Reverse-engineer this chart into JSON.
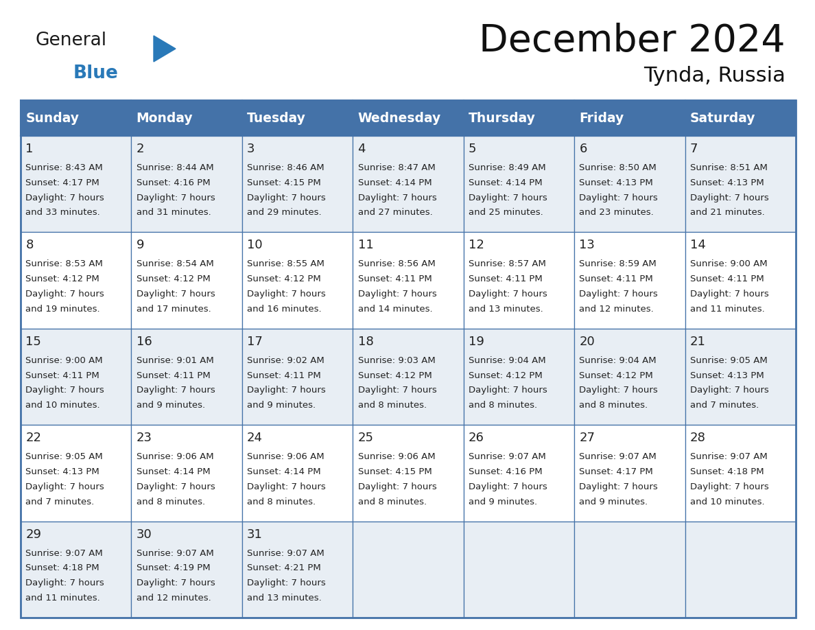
{
  "title": "December 2024",
  "subtitle": "Tynda, Russia",
  "days_of_week": [
    "Sunday",
    "Monday",
    "Tuesday",
    "Wednesday",
    "Thursday",
    "Friday",
    "Saturday"
  ],
  "header_bg": "#4472a8",
  "header_text": "#ffffff",
  "row_bg_light": "#e8eef4",
  "row_bg_white": "#ffffff",
  "border_color": "#4472a8",
  "day_num_color": "#222222",
  "text_color": "#222222",
  "title_color": "#111111",
  "subtitle_color": "#111111",
  "logo_general_color": "#1a1a1a",
  "logo_blue_color": "#2979b8",
  "calendar_data": [
    [
      {
        "day": "1",
        "sunrise": "8:43 AM",
        "sunset": "4:17 PM",
        "daylight_l1": "Daylight: 7 hours",
        "daylight_l2": "and 33 minutes."
      },
      {
        "day": "2",
        "sunrise": "8:44 AM",
        "sunset": "4:16 PM",
        "daylight_l1": "Daylight: 7 hours",
        "daylight_l2": "and 31 minutes."
      },
      {
        "day": "3",
        "sunrise": "8:46 AM",
        "sunset": "4:15 PM",
        "daylight_l1": "Daylight: 7 hours",
        "daylight_l2": "and 29 minutes."
      },
      {
        "day": "4",
        "sunrise": "8:47 AM",
        "sunset": "4:14 PM",
        "daylight_l1": "Daylight: 7 hours",
        "daylight_l2": "and 27 minutes."
      },
      {
        "day": "5",
        "sunrise": "8:49 AM",
        "sunset": "4:14 PM",
        "daylight_l1": "Daylight: 7 hours",
        "daylight_l2": "and 25 minutes."
      },
      {
        "day": "6",
        "sunrise": "8:50 AM",
        "sunset": "4:13 PM",
        "daylight_l1": "Daylight: 7 hours",
        "daylight_l2": "and 23 minutes."
      },
      {
        "day": "7",
        "sunrise": "8:51 AM",
        "sunset": "4:13 PM",
        "daylight_l1": "Daylight: 7 hours",
        "daylight_l2": "and 21 minutes."
      }
    ],
    [
      {
        "day": "8",
        "sunrise": "8:53 AM",
        "sunset": "4:12 PM",
        "daylight_l1": "Daylight: 7 hours",
        "daylight_l2": "and 19 minutes."
      },
      {
        "day": "9",
        "sunrise": "8:54 AM",
        "sunset": "4:12 PM",
        "daylight_l1": "Daylight: 7 hours",
        "daylight_l2": "and 17 minutes."
      },
      {
        "day": "10",
        "sunrise": "8:55 AM",
        "sunset": "4:12 PM",
        "daylight_l1": "Daylight: 7 hours",
        "daylight_l2": "and 16 minutes."
      },
      {
        "day": "11",
        "sunrise": "8:56 AM",
        "sunset": "4:11 PM",
        "daylight_l1": "Daylight: 7 hours",
        "daylight_l2": "and 14 minutes."
      },
      {
        "day": "12",
        "sunrise": "8:57 AM",
        "sunset": "4:11 PM",
        "daylight_l1": "Daylight: 7 hours",
        "daylight_l2": "and 13 minutes."
      },
      {
        "day": "13",
        "sunrise": "8:59 AM",
        "sunset": "4:11 PM",
        "daylight_l1": "Daylight: 7 hours",
        "daylight_l2": "and 12 minutes."
      },
      {
        "day": "14",
        "sunrise": "9:00 AM",
        "sunset": "4:11 PM",
        "daylight_l1": "Daylight: 7 hours",
        "daylight_l2": "and 11 minutes."
      }
    ],
    [
      {
        "day": "15",
        "sunrise": "9:00 AM",
        "sunset": "4:11 PM",
        "daylight_l1": "Daylight: 7 hours",
        "daylight_l2": "and 10 minutes."
      },
      {
        "day": "16",
        "sunrise": "9:01 AM",
        "sunset": "4:11 PM",
        "daylight_l1": "Daylight: 7 hours",
        "daylight_l2": "and 9 minutes."
      },
      {
        "day": "17",
        "sunrise": "9:02 AM",
        "sunset": "4:11 PM",
        "daylight_l1": "Daylight: 7 hours",
        "daylight_l2": "and 9 minutes."
      },
      {
        "day": "18",
        "sunrise": "9:03 AM",
        "sunset": "4:12 PM",
        "daylight_l1": "Daylight: 7 hours",
        "daylight_l2": "and 8 minutes."
      },
      {
        "day": "19",
        "sunrise": "9:04 AM",
        "sunset": "4:12 PM",
        "daylight_l1": "Daylight: 7 hours",
        "daylight_l2": "and 8 minutes."
      },
      {
        "day": "20",
        "sunrise": "9:04 AM",
        "sunset": "4:12 PM",
        "daylight_l1": "Daylight: 7 hours",
        "daylight_l2": "and 8 minutes."
      },
      {
        "day": "21",
        "sunrise": "9:05 AM",
        "sunset": "4:13 PM",
        "daylight_l1": "Daylight: 7 hours",
        "daylight_l2": "and 7 minutes."
      }
    ],
    [
      {
        "day": "22",
        "sunrise": "9:05 AM",
        "sunset": "4:13 PM",
        "daylight_l1": "Daylight: 7 hours",
        "daylight_l2": "and 7 minutes."
      },
      {
        "day": "23",
        "sunrise": "9:06 AM",
        "sunset": "4:14 PM",
        "daylight_l1": "Daylight: 7 hours",
        "daylight_l2": "and 8 minutes."
      },
      {
        "day": "24",
        "sunrise": "9:06 AM",
        "sunset": "4:14 PM",
        "daylight_l1": "Daylight: 7 hours",
        "daylight_l2": "and 8 minutes."
      },
      {
        "day": "25",
        "sunrise": "9:06 AM",
        "sunset": "4:15 PM",
        "daylight_l1": "Daylight: 7 hours",
        "daylight_l2": "and 8 minutes."
      },
      {
        "day": "26",
        "sunrise": "9:07 AM",
        "sunset": "4:16 PM",
        "daylight_l1": "Daylight: 7 hours",
        "daylight_l2": "and 9 minutes."
      },
      {
        "day": "27",
        "sunrise": "9:07 AM",
        "sunset": "4:17 PM",
        "daylight_l1": "Daylight: 7 hours",
        "daylight_l2": "and 9 minutes."
      },
      {
        "day": "28",
        "sunrise": "9:07 AM",
        "sunset": "4:18 PM",
        "daylight_l1": "Daylight: 7 hours",
        "daylight_l2": "and 10 minutes."
      }
    ],
    [
      {
        "day": "29",
        "sunrise": "9:07 AM",
        "sunset": "4:18 PM",
        "daylight_l1": "Daylight: 7 hours",
        "daylight_l2": "and 11 minutes."
      },
      {
        "day": "30",
        "sunrise": "9:07 AM",
        "sunset": "4:19 PM",
        "daylight_l1": "Daylight: 7 hours",
        "daylight_l2": "and 12 minutes."
      },
      {
        "day": "31",
        "sunrise": "9:07 AM",
        "sunset": "4:21 PM",
        "daylight_l1": "Daylight: 7 hours",
        "daylight_l2": "and 13 minutes."
      },
      null,
      null,
      null,
      null
    ]
  ]
}
